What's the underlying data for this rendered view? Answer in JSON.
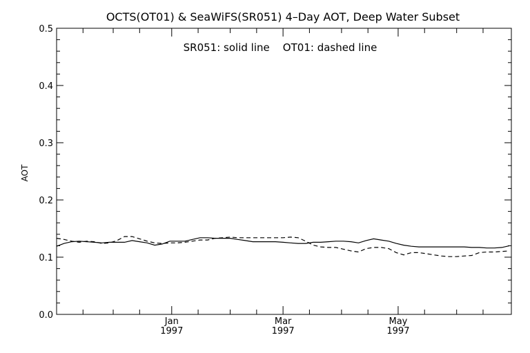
{
  "chart_data": {
    "type": "line",
    "title": "OCTS(OT01) & SeaWiFS(SR051) 4–Day AOT, Deep Water Subset",
    "annotation": "SR051: solid line    OT01: dashed line",
    "ylabel": "AOT",
    "xlabel": "",
    "xlim": [
      "1996-11-01",
      "1997-06-30"
    ],
    "ylim": [
      0,
      0.5
    ],
    "y_ticks": [
      {
        "value": 0.0,
        "label": "0.0"
      },
      {
        "value": 0.1,
        "label": "0.1"
      },
      {
        "value": 0.2,
        "label": "0.2"
      },
      {
        "value": 0.3,
        "label": "0.3"
      },
      {
        "value": 0.4,
        "label": "0.4"
      },
      {
        "value": 0.5,
        "label": "0.5"
      }
    ],
    "x_ticks": [
      {
        "date": "1997-01-01",
        "month": "Jan",
        "year": "1997"
      },
      {
        "date": "1997-03-01",
        "month": "Mar",
        "year": "1997"
      },
      {
        "date": "1997-05-01",
        "month": "May",
        "year": "1997"
      }
    ],
    "series": [
      {
        "line_style": "solid",
        "color": "#000000",
        "points": [
          [
            "1996-11-01",
            0.119
          ],
          [
            "1996-11-05",
            0.124
          ],
          [
            "1996-11-09",
            0.127
          ],
          [
            "1996-11-13",
            0.128
          ],
          [
            "1996-11-17",
            0.127
          ],
          [
            "1996-11-21",
            0.126
          ],
          [
            "1996-11-25",
            0.125
          ],
          [
            "1996-11-29",
            0.126
          ],
          [
            "1996-12-03",
            0.126
          ],
          [
            "1996-12-07",
            0.126
          ],
          [
            "1996-12-11",
            0.129
          ],
          [
            "1996-12-15",
            0.127
          ],
          [
            "1996-12-19",
            0.125
          ],
          [
            "1996-12-23",
            0.121
          ],
          [
            "1996-12-27",
            0.123
          ],
          [
            "1996-12-31",
            0.128
          ],
          [
            "1997-01-04",
            0.128
          ],
          [
            "1997-01-08",
            0.128
          ],
          [
            "1997-01-12",
            0.131
          ],
          [
            "1997-01-16",
            0.134
          ],
          [
            "1997-01-20",
            0.134
          ],
          [
            "1997-01-24",
            0.133
          ],
          [
            "1997-01-28",
            0.133
          ],
          [
            "1997-02-01",
            0.133
          ],
          [
            "1997-02-05",
            0.131
          ],
          [
            "1997-02-09",
            0.129
          ],
          [
            "1997-02-13",
            0.127
          ],
          [
            "1997-02-17",
            0.127
          ],
          [
            "1997-02-21",
            0.127
          ],
          [
            "1997-02-25",
            0.127
          ],
          [
            "1997-03-01",
            0.126
          ],
          [
            "1997-03-05",
            0.125
          ],
          [
            "1997-03-09",
            0.124
          ],
          [
            "1997-03-13",
            0.124
          ],
          [
            "1997-03-17",
            0.126
          ],
          [
            "1997-03-21",
            0.126
          ],
          [
            "1997-03-25",
            0.127
          ],
          [
            "1997-03-29",
            0.128
          ],
          [
            "1997-04-02",
            0.128
          ],
          [
            "1997-04-06",
            0.127
          ],
          [
            "1997-04-10",
            0.125
          ],
          [
            "1997-04-14",
            0.129
          ],
          [
            "1997-04-18",
            0.132
          ],
          [
            "1997-04-22",
            0.13
          ],
          [
            "1997-04-26",
            0.128
          ],
          [
            "1997-04-30",
            0.124
          ],
          [
            "1997-05-04",
            0.121
          ],
          [
            "1997-05-08",
            0.119
          ],
          [
            "1997-05-12",
            0.118
          ],
          [
            "1997-05-16",
            0.118
          ],
          [
            "1997-05-20",
            0.118
          ],
          [
            "1997-05-24",
            0.118
          ],
          [
            "1997-05-28",
            0.118
          ],
          [
            "1997-06-01",
            0.118
          ],
          [
            "1997-06-05",
            0.118
          ],
          [
            "1997-06-09",
            0.117
          ],
          [
            "1997-06-13",
            0.117
          ],
          [
            "1997-06-17",
            0.116
          ],
          [
            "1997-06-21",
            0.116
          ],
          [
            "1997-06-25",
            0.117
          ],
          [
            "1997-06-29",
            0.12
          ]
        ]
      },
      {
        "line_style": "dashed",
        "color": "#000000",
        "points": [
          [
            "1996-11-01",
            0.133
          ],
          [
            "1996-11-05",
            0.131
          ],
          [
            "1996-11-09",
            0.128
          ],
          [
            "1996-11-13",
            0.126
          ],
          [
            "1996-11-17",
            0.128
          ],
          [
            "1996-11-21",
            0.127
          ],
          [
            "1996-11-25",
            0.124
          ],
          [
            "1996-11-29",
            0.125
          ],
          [
            "1996-12-03",
            0.129
          ],
          [
            "1996-12-07",
            0.136
          ],
          [
            "1996-12-11",
            0.136
          ],
          [
            "1996-12-15",
            0.132
          ],
          [
            "1996-12-19",
            0.128
          ],
          [
            "1996-12-23",
            0.125
          ],
          [
            "1996-12-27",
            0.124
          ],
          [
            "1996-12-31",
            0.125
          ],
          [
            "1997-01-04",
            0.125
          ],
          [
            "1997-01-08",
            0.126
          ],
          [
            "1997-01-12",
            0.128
          ],
          [
            "1997-01-16",
            0.13
          ],
          [
            "1997-01-20",
            0.13
          ],
          [
            "1997-01-24",
            0.133
          ],
          [
            "1997-01-28",
            0.134
          ],
          [
            "1997-02-01",
            0.135
          ],
          [
            "1997-02-05",
            0.134
          ],
          [
            "1997-02-09",
            0.134
          ],
          [
            "1997-02-13",
            0.134
          ],
          [
            "1997-02-17",
            0.134
          ],
          [
            "1997-02-21",
            0.134
          ],
          [
            "1997-02-25",
            0.134
          ],
          [
            "1997-03-01",
            0.134
          ],
          [
            "1997-03-05",
            0.135
          ],
          [
            "1997-03-09",
            0.134
          ],
          [
            "1997-03-13",
            0.128
          ],
          [
            "1997-03-17",
            0.121
          ],
          [
            "1997-03-21",
            0.118
          ],
          [
            "1997-03-25",
            0.117
          ],
          [
            "1997-03-29",
            0.117
          ],
          [
            "1997-04-02",
            0.114
          ],
          [
            "1997-04-06",
            0.111
          ],
          [
            "1997-04-10",
            0.109
          ],
          [
            "1997-04-14",
            0.115
          ],
          [
            "1997-04-18",
            0.117
          ],
          [
            "1997-04-22",
            0.117
          ],
          [
            "1997-04-26",
            0.115
          ],
          [
            "1997-04-30",
            0.108
          ],
          [
            "1997-05-04",
            0.104
          ],
          [
            "1997-05-08",
            0.108
          ],
          [
            "1997-05-12",
            0.108
          ],
          [
            "1997-05-16",
            0.106
          ],
          [
            "1997-05-20",
            0.104
          ],
          [
            "1997-05-24",
            0.102
          ],
          [
            "1997-05-28",
            0.101
          ],
          [
            "1997-06-01",
            0.101
          ],
          [
            "1997-06-05",
            0.102
          ],
          [
            "1997-06-09",
            0.103
          ],
          [
            "1997-06-13",
            0.108
          ],
          [
            "1997-06-17",
            0.109
          ],
          [
            "1997-06-21",
            0.109
          ],
          [
            "1997-06-25",
            0.11
          ],
          [
            "1997-06-29",
            0.111
          ]
        ]
      }
    ],
    "grid": false,
    "legend": "none"
  }
}
